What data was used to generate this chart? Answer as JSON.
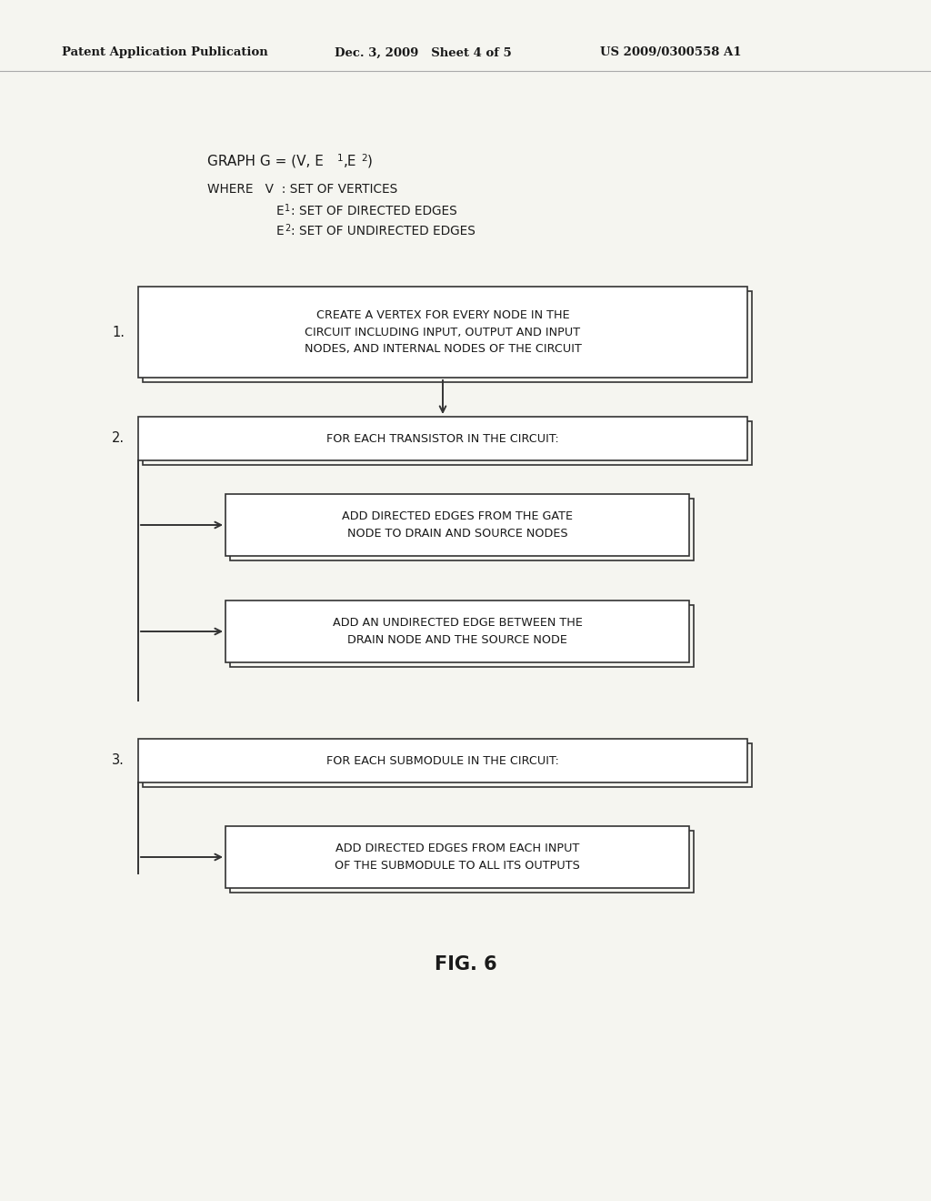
{
  "background_color": "#f5f5f0",
  "header_left": "Patent Application Publication",
  "header_mid": "Dec. 3, 2009   Sheet 4 of 5",
  "header_right": "US 2009/0300558 A1",
  "box1_text": "CREATE A VERTEX FOR EVERY NODE IN THE\nCIRCUIT INCLUDING INPUT, OUTPUT AND INPUT\nNODES, AND INTERNAL NODES OF THE CIRCUIT",
  "box2_text": "FOR EACH TRANSISTOR IN THE CIRCUIT:",
  "box3_text": "ADD DIRECTED EDGES FROM THE GATE\nNODE TO DRAIN AND SOURCE NODES",
  "box4_text": "ADD AN UNDIRECTED EDGE BETWEEN THE\nDRAIN NODE AND THE SOURCE NODE",
  "box5_text": "FOR EACH SUBMODULE IN THE CIRCUIT:",
  "box6_text": "ADD DIRECTED EDGES FROM EACH INPUT\nOF THE SUBMODULE TO ALL ITS OUTPUTS",
  "fig_label": "FIG. 6",
  "text_color": "#1a1a1a",
  "box_edge_color": "#333333",
  "box_face_color": "#ffffff",
  "arrow_color": "#333333",
  "header_line_color": "#aaaaaa"
}
